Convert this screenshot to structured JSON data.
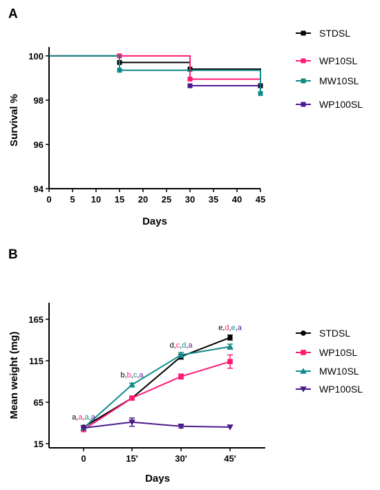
{
  "colors": {
    "STDSL": "#000000",
    "WP10SL": "#ff1a75",
    "MW10SL": "#0f8a8a",
    "WP100SL": "#4a1a8c"
  },
  "chart_data": [
    {
      "panel": "A",
      "type": "line",
      "step": true,
      "xlabel": "Days",
      "ylabel": "Survival %",
      "xlim": [
        0,
        45
      ],
      "ylim": [
        94,
        100.4
      ],
      "xticks": [
        0,
        5,
        10,
        15,
        20,
        25,
        30,
        35,
        40,
        45
      ],
      "yticks": [
        94,
        96,
        98,
        100
      ],
      "tick_labels_x": [
        "0",
        "5",
        "10",
        "15",
        "20",
        "25",
        "30",
        "35",
        "40",
        "45"
      ],
      "tick_labels_y": [
        "94",
        "96",
        "98",
        "100"
      ],
      "legend": "right",
      "series": [
        {
          "name": "STDSL",
          "marker": "square",
          "points": [
            [
              0,
              100
            ],
            [
              15,
              99.7
            ],
            [
              30,
              99.4
            ],
            [
              45,
              98.65
            ]
          ],
          "markers_at": [
            15,
            30,
            45
          ]
        },
        {
          "name": "WP10SL",
          "marker": "square",
          "points": [
            [
              0,
              100
            ],
            [
              15,
              100
            ],
            [
              30,
              98.95
            ],
            [
              45,
              98.95
            ]
          ],
          "markers_at": [
            15,
            30
          ]
        },
        {
          "name": "MW10SL",
          "marker": "square",
          "points": [
            [
              0,
              100
            ],
            [
              15,
              99.35
            ],
            [
              30,
              99.35
            ],
            [
              45,
              98.3
            ]
          ],
          "markers_at": [
            15,
            45
          ]
        },
        {
          "name": "WP100SL",
          "marker": "square",
          "points": [
            [
              30,
              98.65
            ],
            [
              45,
              98.65
            ]
          ],
          "markers_at": [
            30
          ]
        }
      ]
    },
    {
      "panel": "B",
      "type": "line",
      "xlabel": "Days",
      "ylabel": "Mean weight (mg)",
      "categories": [
        "0",
        "15'",
        "30'",
        "45'"
      ],
      "ylim": [
        10,
        185
      ],
      "yticks": [
        15,
        65,
        115,
        165
      ],
      "tick_labels_y": [
        "15",
        "65",
        "115",
        "165"
      ],
      "legend": "right",
      "series": [
        {
          "name": "STDSL",
          "marker": "circle",
          "values": [
            35,
            70,
            120,
            143
          ],
          "errors": [
            1,
            2,
            3,
            3
          ]
        },
        {
          "name": "WP10SL",
          "marker": "square",
          "values": [
            32,
            70,
            96,
            114
          ],
          "errors": [
            1,
            2,
            3,
            8
          ]
        },
        {
          "name": "MW10SL",
          "marker": "triangle-up",
          "values": [
            34,
            86,
            122,
            132
          ],
          "errors": [
            1,
            2,
            3,
            3
          ]
        },
        {
          "name": "WP100SL",
          "marker": "triangle-down",
          "values": [
            34,
            41,
            36,
            35
          ],
          "errors": [
            1,
            5,
            2,
            1
          ]
        }
      ],
      "annotations": [
        {
          "x": "0",
          "y": 44,
          "letters": [
            "a",
            "a",
            "a",
            "a"
          ]
        },
        {
          "x": "15'",
          "y": 95,
          "letters": [
            "b",
            "b",
            "c",
            "a"
          ]
        },
        {
          "x": "30'",
          "y": 131,
          "letters": [
            "d",
            "c",
            "d",
            "a"
          ]
        },
        {
          "x": "45'",
          "y": 152,
          "letters": [
            "e",
            "d",
            "e",
            "a"
          ]
        }
      ]
    }
  ]
}
